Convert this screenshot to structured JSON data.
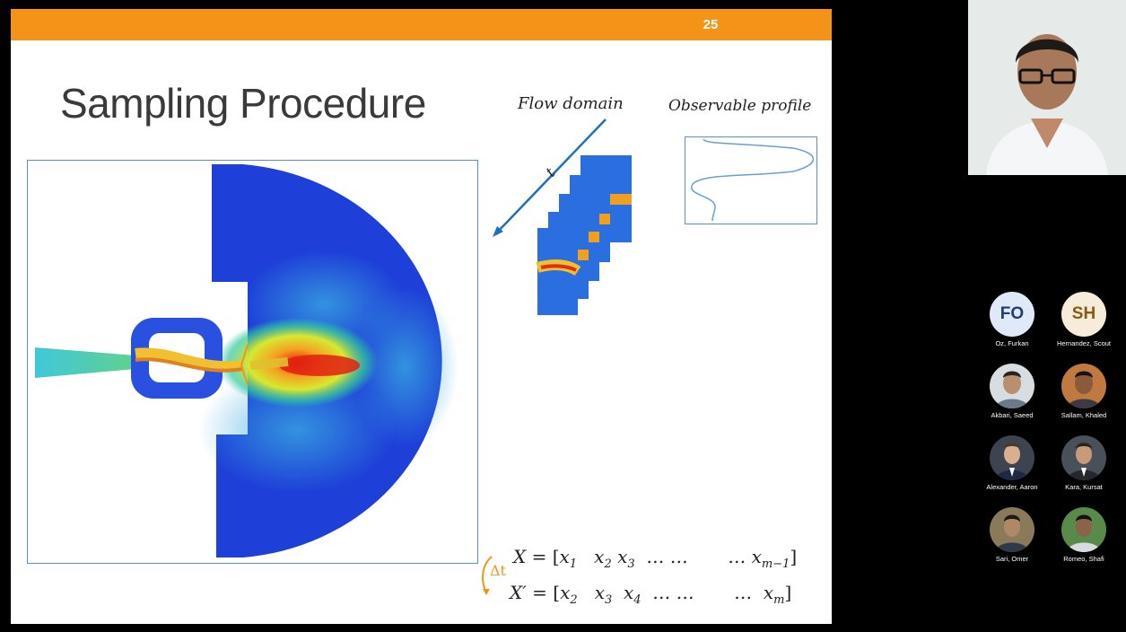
{
  "slide": {
    "page_number": "25",
    "title": "Sampling Procedure",
    "flow_domain_label": "Flow domain",
    "time_label": "t",
    "observable_label": "Observable profile",
    "delta_t_label": "Δt",
    "eq1": {
      "lhs": "X",
      "eq": " = [",
      "terms": [
        "x",
        "x",
        "x",
        "… …",
        "… x"
      ],
      "subs": [
        "1",
        "2",
        "3",
        "m−1"
      ],
      "end": "]"
    },
    "eq2": {
      "lhs": "X′",
      "eq": " = [",
      "subs": [
        "2",
        "3",
        "4",
        "m"
      ],
      "end": "]"
    }
  },
  "colors": {
    "accent_orange": "#f39318",
    "frame_blue": "#5b8fd0",
    "flow_low": "#1e3fd8",
    "flow_high": "#e02010"
  },
  "participants": [
    {
      "initials": "FO",
      "name": "Oz, Furkan",
      "avatar_bg": "#dfe9f7",
      "avatar_fg": "#1f3d7a"
    },
    {
      "initials": "SH",
      "name": "Hernandez, Scout",
      "avatar_bg": "#f7ecd9",
      "avatar_fg": "#8a5a14"
    },
    {
      "initials": "",
      "name": "Akbari, Saeed",
      "avatar_bg": "#7b8b9a",
      "avatar_fg": ""
    },
    {
      "initials": "",
      "name": "Sallam, Khaled",
      "avatar_bg": "#b07040",
      "avatar_fg": ""
    },
    {
      "initials": "",
      "name": "Alexander, Aaron",
      "avatar_bg": "#3d4450",
      "avatar_fg": ""
    },
    {
      "initials": "",
      "name": "Kara, Kursat",
      "avatar_bg": "#4a505a",
      "avatar_fg": ""
    },
    {
      "initials": "",
      "name": "Sari, Omer",
      "avatar_bg": "#8a7a5a",
      "avatar_fg": ""
    },
    {
      "initials": "",
      "name": "Romeo, Shafi",
      "avatar_bg": "#5a8a4a",
      "avatar_fg": ""
    }
  ]
}
